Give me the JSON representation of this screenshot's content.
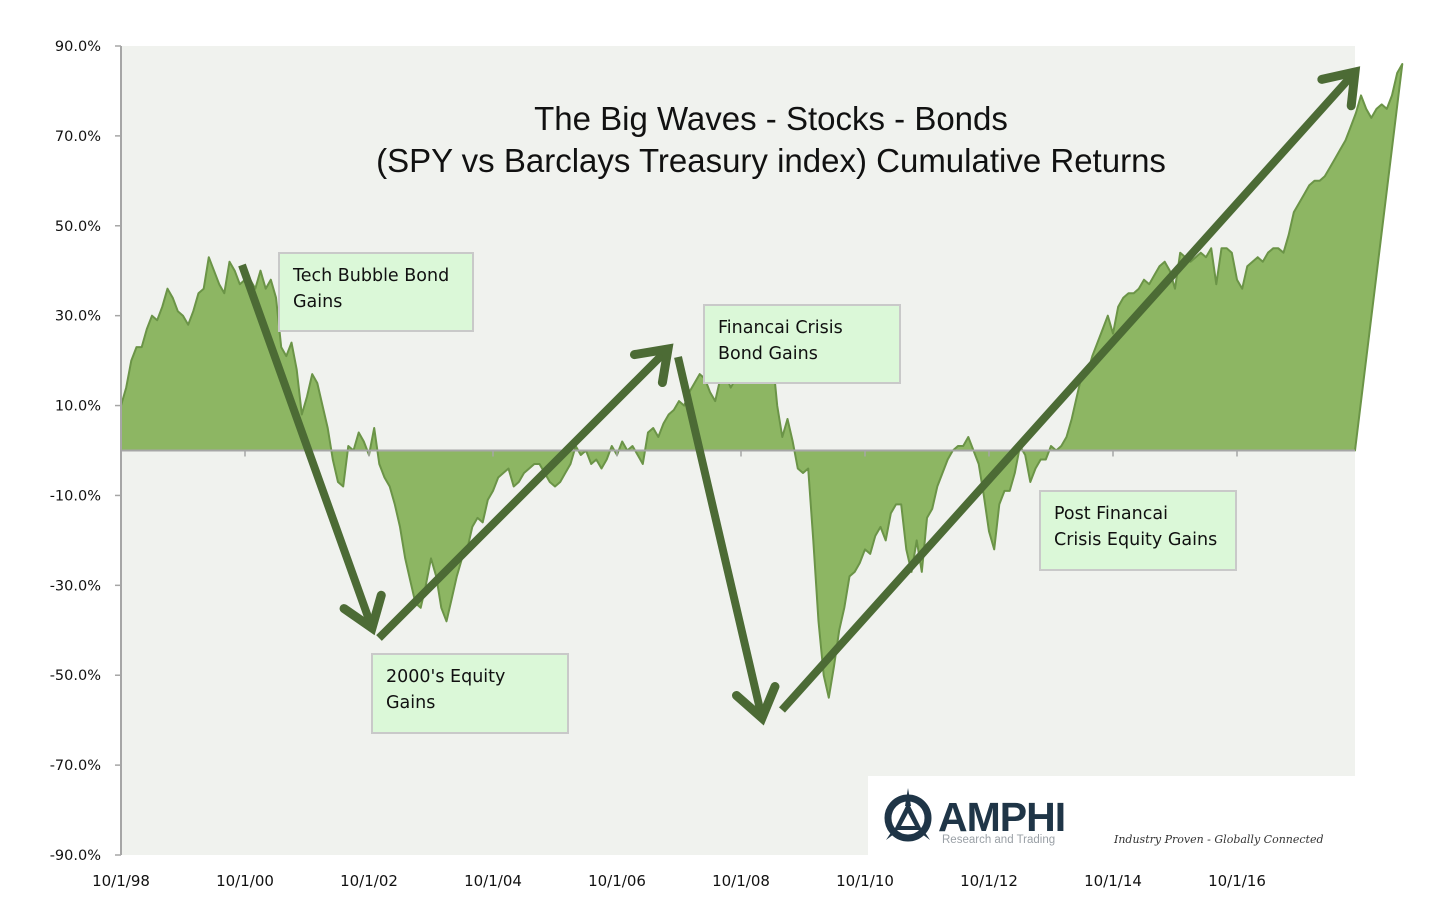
{
  "chart": {
    "title_line1": "The Big Waves - Stocks - Bonds",
    "title_line2": "(SPY vs Barclays Treasury index) Cumulative Returns",
    "colors": {
      "plot_bg": "#f0f2ee",
      "area_fill": "#8db663",
      "area_stroke": "#6b9447",
      "arrow": "#4c6b35",
      "axis": "#a6a6a6",
      "annot_bg": "#dbf8d8",
      "annot_border": "#c9c9c9"
    },
    "annotations": [
      {
        "id": "tech-bubble",
        "line1": "Tech Bubble Bond",
        "line2": "Gains"
      },
      {
        "id": "financial-crisis-bond",
        "line1": "Financai Crisis",
        "line2": "Bond  Gains"
      },
      {
        "id": "equity-2000s",
        "line1": "2000's Equity",
        "line2": "Gains"
      },
      {
        "id": "post-crisis-equity",
        "line1": "Post Financai",
        "line2": "Crisis Equity Gains"
      }
    ],
    "logo": {
      "name": "AMPHI",
      "subtitle": "Research and Trading",
      "tagline": "Industry Proven - Globally Connected"
    }
  },
  "chart_data": {
    "type": "area",
    "title": "The Big Waves - Stocks - Bonds (SPY vs Barclays Treasury index) Cumulative Returns",
    "xlabel": "",
    "ylabel": "",
    "ylim": [
      -90,
      90
    ],
    "y_ticks": [
      "90.0%",
      "70.0%",
      "50.0%",
      "30.0%",
      "10.0%",
      "-10.0%",
      "-30.0%",
      "-50.0%",
      "-70.0%",
      "-90.0%"
    ],
    "y_tick_values": [
      90,
      70,
      50,
      30,
      10,
      -10,
      -30,
      -50,
      -70,
      -90
    ],
    "x_ticks": [
      "10/1/98",
      "10/1/00",
      "10/1/02",
      "10/1/04",
      "10/1/06",
      "10/1/08",
      "10/1/10",
      "10/1/12",
      "10/1/14",
      "10/1/16"
    ],
    "grid": false,
    "legend": "none",
    "series": [
      {
        "name": "SPY minus Barclays Treasury cumulative return (%)",
        "x_start": "10/1/98",
        "x_step": "1 month",
        "values": [
          10,
          14,
          20,
          23,
          23,
          27,
          30,
          29,
          32,
          36,
          34,
          31,
          30,
          28,
          31,
          35,
          36,
          43,
          40,
          37,
          35,
          42,
          40,
          37,
          38,
          38,
          36,
          40,
          36,
          38,
          34,
          23,
          21,
          24,
          18,
          8,
          12,
          17,
          15,
          10,
          5,
          -2,
          -7,
          -8,
          1,
          0,
          4,
          2,
          -1,
          5,
          -3,
          -6,
          -8,
          -12,
          -17,
          -24,
          -29,
          -34,
          -35,
          -30,
          -24,
          -28,
          -35,
          -38,
          -33,
          -28,
          -24,
          -22,
          -17,
          -15,
          -16,
          -11,
          -9,
          -6,
          -5,
          -4,
          -8,
          -7,
          -5,
          -4,
          -3,
          -3,
          -5,
          -7,
          -8,
          -7,
          -5,
          -3,
          1,
          -1,
          0,
          -3,
          -2,
          -4,
          -2,
          1,
          -1,
          2,
          0,
          1,
          -1,
          -3,
          4,
          5,
          3,
          6,
          8,
          9,
          11,
          10,
          13,
          15,
          17,
          16,
          13,
          11,
          16,
          17,
          14,
          16,
          20,
          22,
          19,
          18,
          18,
          20,
          22,
          10,
          3,
          7,
          2,
          -4,
          -5,
          -4,
          -20,
          -38,
          -50,
          -55,
          -48,
          -40,
          -35,
          -28,
          -27,
          -25,
          -22,
          -23,
          -19,
          -17,
          -20,
          -14,
          -12,
          -12,
          -22,
          -27,
          -20,
          -27,
          -15,
          -13,
          -8,
          -5,
          -2,
          0,
          1,
          1,
          3,
          0,
          -3,
          -10,
          -18,
          -22,
          -12,
          -9,
          -9,
          -5,
          1,
          -1,
          -7,
          -4,
          -2,
          -2,
          1,
          0,
          1,
          3,
          7,
          12,
          17,
          17,
          21,
          24,
          27,
          30,
          26,
          32,
          34,
          35,
          35,
          36,
          38,
          37,
          39,
          41,
          42,
          40,
          36,
          44,
          43,
          42,
          43,
          44,
          43,
          45,
          37,
          45,
          45,
          44,
          38,
          36,
          41,
          42,
          43,
          42,
          44,
          45,
          45,
          44,
          48,
          53,
          55,
          57,
          59,
          60,
          60,
          61,
          63,
          65,
          67,
          69,
          72,
          75,
          79,
          76,
          74,
          76,
          77,
          76,
          79,
          84,
          86
        ]
      }
    ],
    "arrows": [
      {
        "label": "Tech Bubble Bond Gains",
        "from": [
          "1/1/01",
          41
        ],
        "to": [
          "10/1/02",
          -39
        ]
      },
      {
        "label": "2000's Equity Gains",
        "from": [
          "11/1/02",
          -42
        ],
        "to": [
          "3/1/07",
          23
        ]
      },
      {
        "label": "Financai Crisis Bond Gains",
        "from": [
          "5/1/07",
          21
        ],
        "to": [
          "3/1/09",
          -60
        ]
      },
      {
        "label": "Post Financai Crisis Equity Gains",
        "from": [
          "6/1/09",
          -58
        ],
        "to": [
          "2/1/18",
          84
        ]
      }
    ]
  }
}
